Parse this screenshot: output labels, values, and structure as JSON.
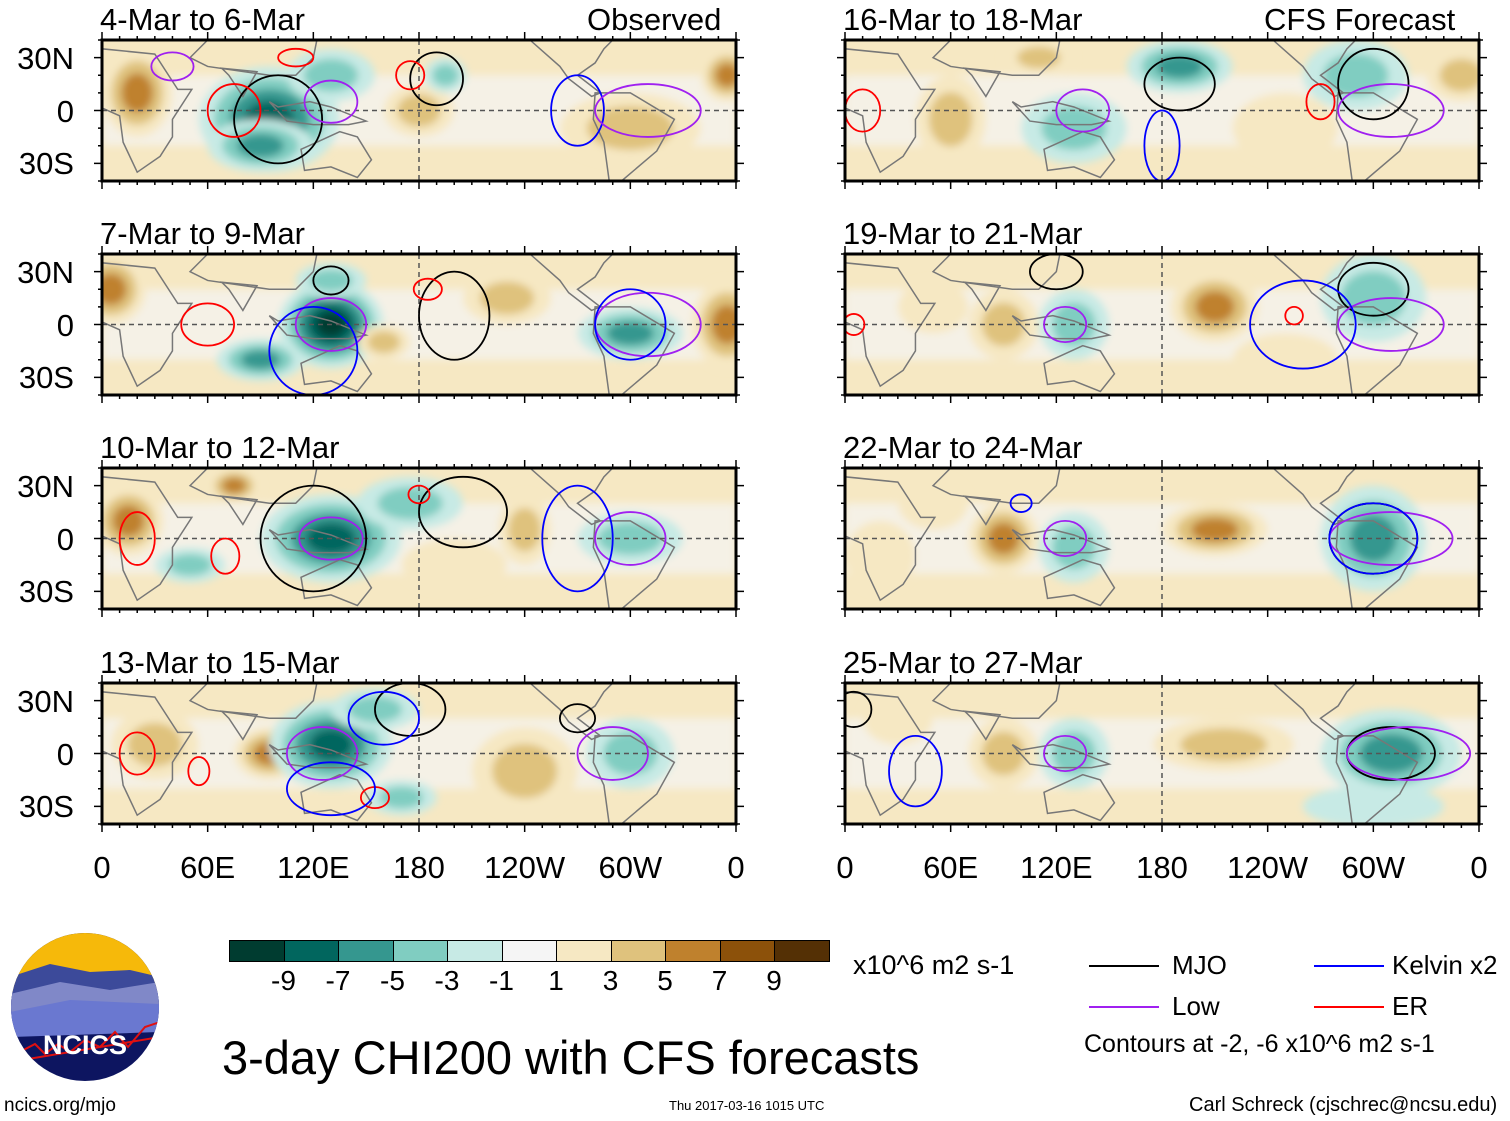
{
  "left_header": "Observed",
  "right_header": "CFS Forecast",
  "panels": [
    {
      "title": "4-Mar to 6-Mar",
      "column": "left",
      "row": 0
    },
    {
      "title": "7-Mar to 9-Mar",
      "column": "left",
      "row": 1
    },
    {
      "title": "10-Mar to 12-Mar",
      "column": "left",
      "row": 2
    },
    {
      "title": "13-Mar to 15-Mar",
      "column": "left",
      "row": 3
    },
    {
      "title": "16-Mar to 18-Mar",
      "column": "right",
      "row": 0
    },
    {
      "title": "19-Mar to 21-Mar",
      "column": "right",
      "row": 1
    },
    {
      "title": "22-Mar to 24-Mar",
      "column": "right",
      "row": 2
    },
    {
      "title": "25-Mar to 27-Mar",
      "column": "right",
      "row": 3
    }
  ],
  "y_ticks": [
    "30N",
    "0",
    "30S"
  ],
  "x_ticks": [
    "0",
    "60E",
    "120E",
    "180",
    "120W",
    "60W",
    "0"
  ],
  "colorbar": {
    "labels": [
      "-9",
      "-7",
      "-5",
      "-3",
      "-1",
      "1",
      "3",
      "5",
      "7",
      "9"
    ],
    "colors": [
      "#003c30",
      "#01665e",
      "#35978f",
      "#80cdc1",
      "#c7eae5",
      "#f5f5f5",
      "#f6e8c3",
      "#dfc27d",
      "#bf812d",
      "#8c510a",
      "#543005"
    ],
    "units": "x10^6 m2 s-1"
  },
  "legend": {
    "items": [
      {
        "label": "MJO",
        "color": "#000000"
      },
      {
        "label": "Kelvin x2",
        "color": "#0000ff"
      },
      {
        "label": "Low",
        "color": "#a020f0"
      },
      {
        "label": "ER",
        "color": "#ff0000"
      }
    ],
    "contours_note": "Contours at -2, -6 x10^6 m2 s-1"
  },
  "main_title": "3-day CHI200 with CFS forecasts",
  "logo_text": "NCICS",
  "url": "ncics.org/mjo",
  "timestamp": "Thu 2017-03-16 1015 UTC",
  "author": "Carl Schreck (cjschrec@ncsu.edu)"
}
